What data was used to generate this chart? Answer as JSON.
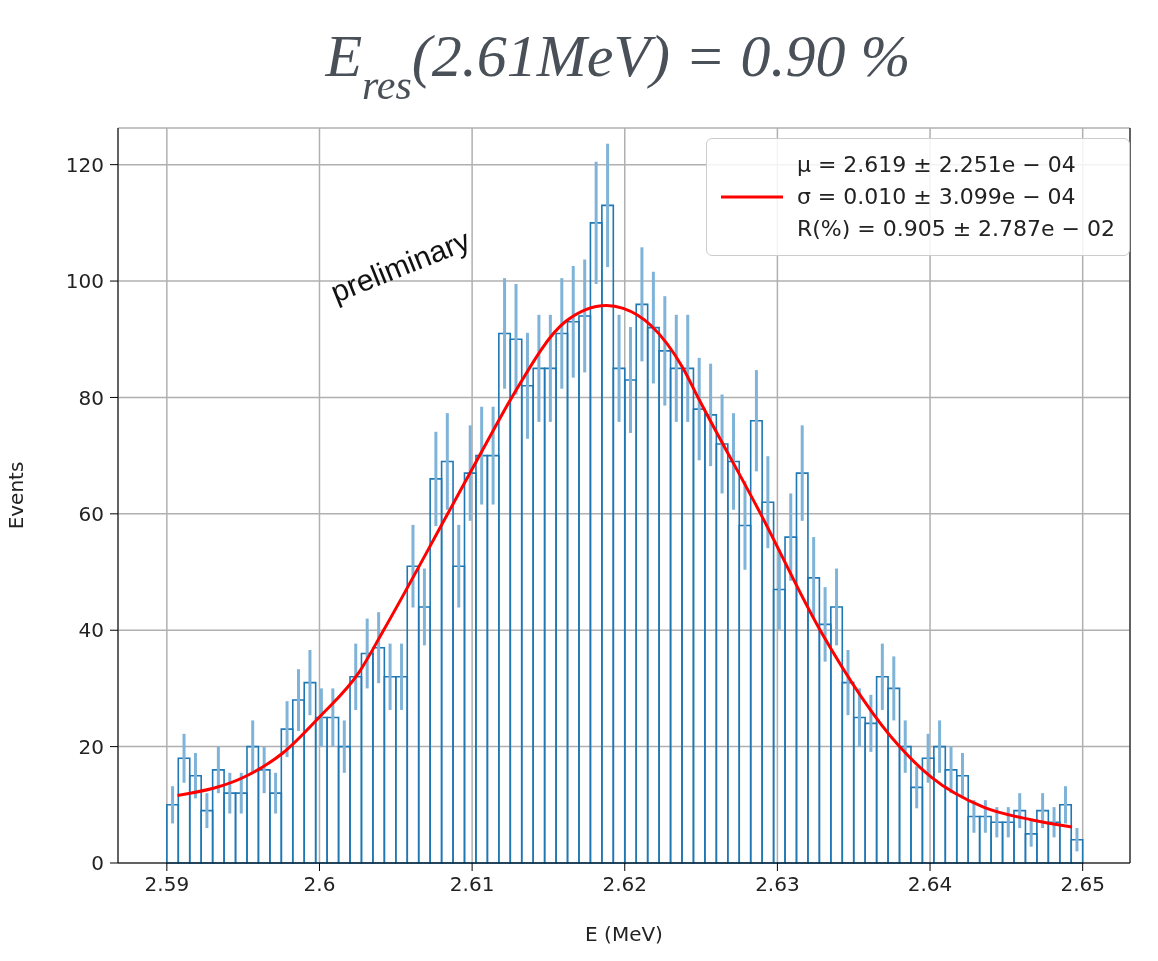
{
  "chart_data": {
    "type": "histogram",
    "title": "E$_{res}$(2.61MeV) = 0.90 %",
    "xlabel": "E (MeV)",
    "ylabel": "Events",
    "annotations": [
      "preliminary"
    ],
    "bins": [
      2.59,
      2.59075,
      2.5915,
      2.59225,
      2.593,
      2.59375,
      2.5945,
      2.59525,
      2.596,
      2.59675,
      2.5975,
      2.59825,
      2.599,
      2.59975,
      2.6005,
      2.60125,
      2.602,
      2.60275,
      2.6035,
      2.60425,
      2.605,
      2.60575,
      2.6065,
      2.60725,
      2.608,
      2.60875,
      2.6095,
      2.61025,
      2.611,
      2.61175,
      2.6125,
      2.61325,
      2.614,
      2.61475,
      2.6155,
      2.61625,
      2.617,
      2.61775,
      2.6185,
      2.61925,
      2.62,
      2.62075,
      2.6215,
      2.62225,
      2.623,
      2.62375,
      2.6245,
      2.62525,
      2.626,
      2.62675,
      2.6275,
      2.62825,
      2.629,
      2.62975,
      2.6305,
      2.63125,
      2.632,
      2.63275,
      2.6335,
      2.63425,
      2.635,
      2.63575,
      2.6365,
      2.63725,
      2.638,
      2.63875,
      2.6395,
      2.64025,
      2.641,
      2.64175,
      2.6425,
      2.64325,
      2.644,
      2.64475,
      2.6455,
      2.64625,
      2.647,
      2.64775,
      2.6485,
      2.64925,
      2.65
    ],
    "values": [
      10,
      18,
      15,
      9,
      16,
      12,
      12,
      20,
      16,
      12,
      23,
      28,
      31,
      25,
      25,
      20,
      32,
      36,
      37,
      32,
      32,
      51,
      44,
      66,
      69,
      51,
      67,
      70,
      70,
      91,
      90,
      82,
      85,
      85,
      91,
      93,
      94,
      110,
      113,
      85,
      83,
      96,
      92,
      88,
      85,
      85,
      78,
      77,
      72,
      69,
      58,
      76,
      62,
      47,
      56,
      67,
      49,
      41,
      44,
      31,
      25,
      24,
      32,
      30,
      20,
      13,
      18,
      20,
      16,
      15,
      8,
      8,
      7,
      7,
      9,
      5,
      9,
      7,
      10,
      4
    ],
    "errors": [
      3.2,
      4.2,
      3.9,
      3.0,
      4.0,
      3.5,
      3.5,
      4.5,
      4.0,
      3.5,
      4.8,
      5.3,
      5.6,
      5.0,
      5.0,
      4.5,
      5.7,
      6.0,
      6.1,
      5.7,
      5.7,
      7.1,
      6.6,
      8.1,
      8.3,
      7.1,
      8.2,
      8.4,
      8.4,
      9.5,
      9.5,
      9.1,
      9.2,
      9.2,
      9.5,
      9.6,
      9.7,
      10.5,
      10.6,
      9.2,
      9.1,
      9.8,
      9.6,
      9.4,
      9.2,
      9.2,
      8.8,
      8.8,
      8.5,
      8.3,
      7.6,
      8.7,
      7.9,
      6.9,
      7.5,
      8.2,
      7.0,
      6.4,
      6.6,
      5.6,
      5.0,
      4.9,
      5.7,
      5.5,
      4.5,
      3.6,
      4.2,
      4.5,
      4.0,
      3.9,
      2.8,
      2.8,
      2.6,
      2.6,
      3.0,
      2.2,
      3.0,
      2.6,
      3.2,
      2.0
    ],
    "color": "#1f77b4",
    "series": [
      {
        "type": "line",
        "name": "μ = 2.619 ± 2.251e − 04\nσ = 0.010 ± 3.099e − 04\nR(%) = 0.905 ± 2.787e − 02",
        "color": "#ff0000",
        "x": [
          2.5907,
          2.5954,
          2.5976,
          2.6,
          2.6026,
          2.6042,
          2.6084,
          2.6109,
          2.6126,
          2.6161,
          2.6188,
          2.6199,
          2.6217,
          2.6238,
          2.6248,
          2.6289,
          2.6328,
          2.638,
          2.6401,
          2.6435,
          2.6467,
          2.6493
        ],
        "values": [
          11.6,
          15.2,
          18.9,
          25.1,
          32.8,
          40,
          60,
          72,
          80,
          93,
          95.8,
          95.3,
          92.4,
          85.1,
          80,
          60,
          40,
          20,
          14.7,
          9.6,
          7.4,
          6.2
        ]
      }
    ],
    "xlim": [
      2.5868,
      2.6531
    ],
    "xticks": [
      2.59,
      2.6,
      2.61,
      2.62,
      2.63,
      2.64,
      2.65
    ],
    "ylim": [
      0,
      126.3
    ],
    "yticks": [
      0,
      20,
      40,
      60,
      80,
      100,
      120
    ],
    "grid": true,
    "legend": "top right"
  }
}
